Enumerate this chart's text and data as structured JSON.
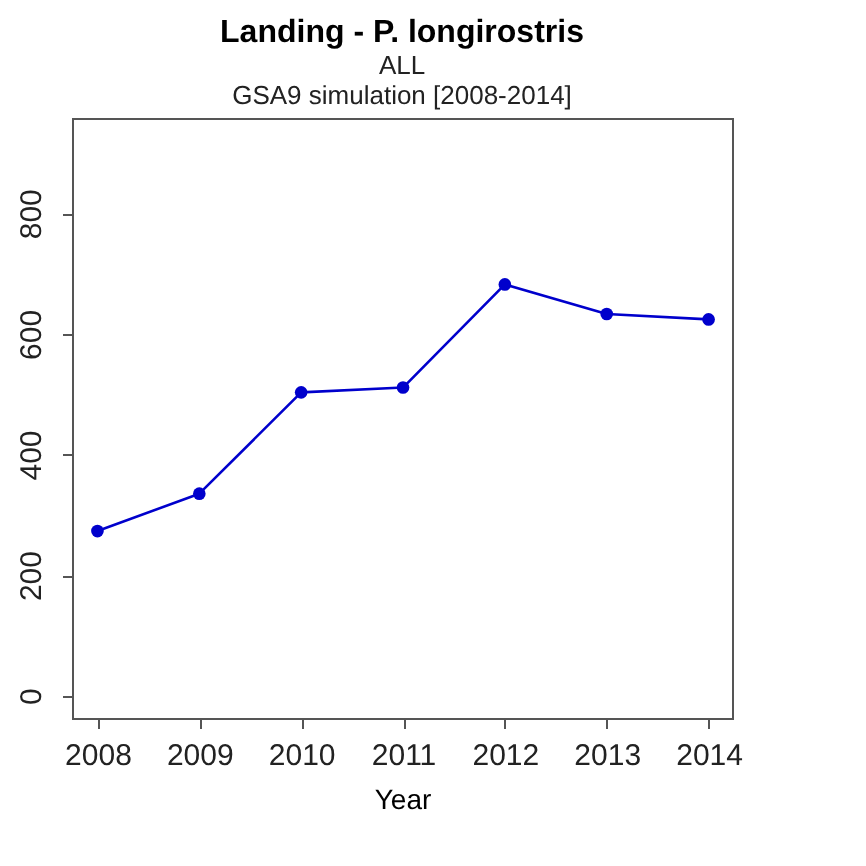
{
  "chart_data": {
    "type": "line",
    "title": "Landing - P. longirostris",
    "subtitle": "ALL",
    "annotations": [
      "GSA9 simulation [2008-2014]"
    ],
    "xlabel": "Year",
    "x": [
      2008,
      2009,
      2010,
      2011,
      2012,
      2013,
      2014
    ],
    "series": [
      {
        "color": "#0000cc",
        "values": [
          273,
          335,
          503,
          511,
          682,
          633,
          624
        ]
      }
    ],
    "xlim": [
      2007.75,
      2014.23
    ],
    "ylim": [
      -37,
      958
    ],
    "xticks": [
      2008,
      2009,
      2010,
      2011,
      2012,
      2013,
      2014
    ],
    "yticks": [
      0,
      200,
      400,
      600,
      800
    ],
    "marker": "circle",
    "line_style": "solid",
    "grid": false
  }
}
